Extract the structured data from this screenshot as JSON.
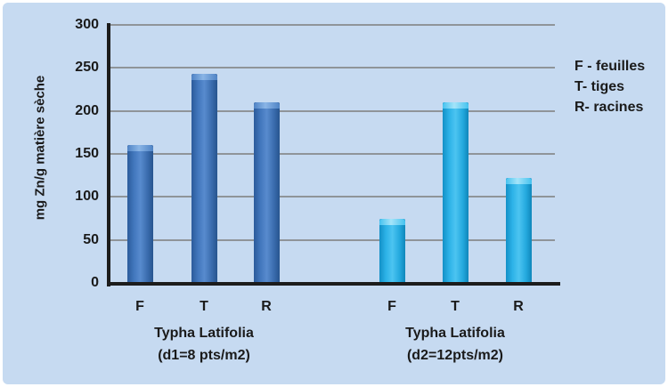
{
  "chart_data": {
    "type": "bar",
    "title": "",
    "ylabel": "mg Zn/g matière sèche",
    "xlabel": "",
    "ylim": [
      0,
      300
    ],
    "ytick_step": 50,
    "yticks": [
      0,
      50,
      100,
      150,
      200,
      250,
      300
    ],
    "grid": true,
    "categories": [
      "F",
      "T",
      "R"
    ],
    "groups": [
      {
        "name": "Typha Latifolia (d1=8 pts/m2)",
        "label_line1": "Typha Latifolia",
        "label_line2": "(d1=8 pts/m2)",
        "color": "#3a70b7",
        "values": [
          160,
          243,
          210
        ]
      },
      {
        "name": "Typha Latifolia (d2=12pts/m2)",
        "label_line1": "Typha Latifolia",
        "label_line2": "(d2=12pts/m2)",
        "color": "#2bb2e8",
        "values": [
          75,
          210,
          122
        ]
      }
    ],
    "legend": {
      "position": "right",
      "items": [
        "F - feuilles",
        "T- tiges",
        "R- racines"
      ]
    },
    "colors": {
      "background": "#c6daf1",
      "frame": "#ffffff",
      "gridline": "#8f9499",
      "axis": "#1c1c1c",
      "text": "#1a1a1a",
      "series1_dark_blue": "#3a70b7",
      "series2_light_blue": "#2bb2e8"
    }
  }
}
